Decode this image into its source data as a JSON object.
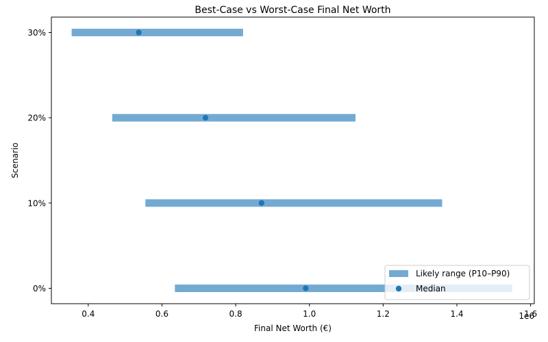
{
  "chart_data": {
    "type": "range",
    "title": "Best-Case vs Worst-Case Final Net Worth",
    "xlabel": "Final Net Worth (€)",
    "ylabel": "Scenario",
    "x_offset_label": "1e6",
    "xlim": [
      0.3,
      1.61
    ],
    "x_ticks": [
      0.4,
      0.6,
      0.8,
      1.0,
      1.2,
      1.4,
      1.6
    ],
    "x_tick_labels": [
      "0.4",
      "0.6",
      "0.8",
      "1.0",
      "1.2",
      "1.4",
      "1.6"
    ],
    "x_scale_factor": 1000000,
    "categories": [
      "0%",
      "10%",
      "20%",
      "30%"
    ],
    "p10": [
      635000,
      555000,
      465000,
      355000
    ],
    "p90": [
      1550000,
      1360000,
      1125000,
      820000
    ],
    "median": [
      990000,
      870000,
      718000,
      537000
    ],
    "legend": {
      "placement": "lower-right",
      "range_label": "Likely range (P10–P90)",
      "median_label": "Median"
    },
    "colors": {
      "range": "#74aad2",
      "median": "#1f77b4"
    },
    "grid": false
  }
}
